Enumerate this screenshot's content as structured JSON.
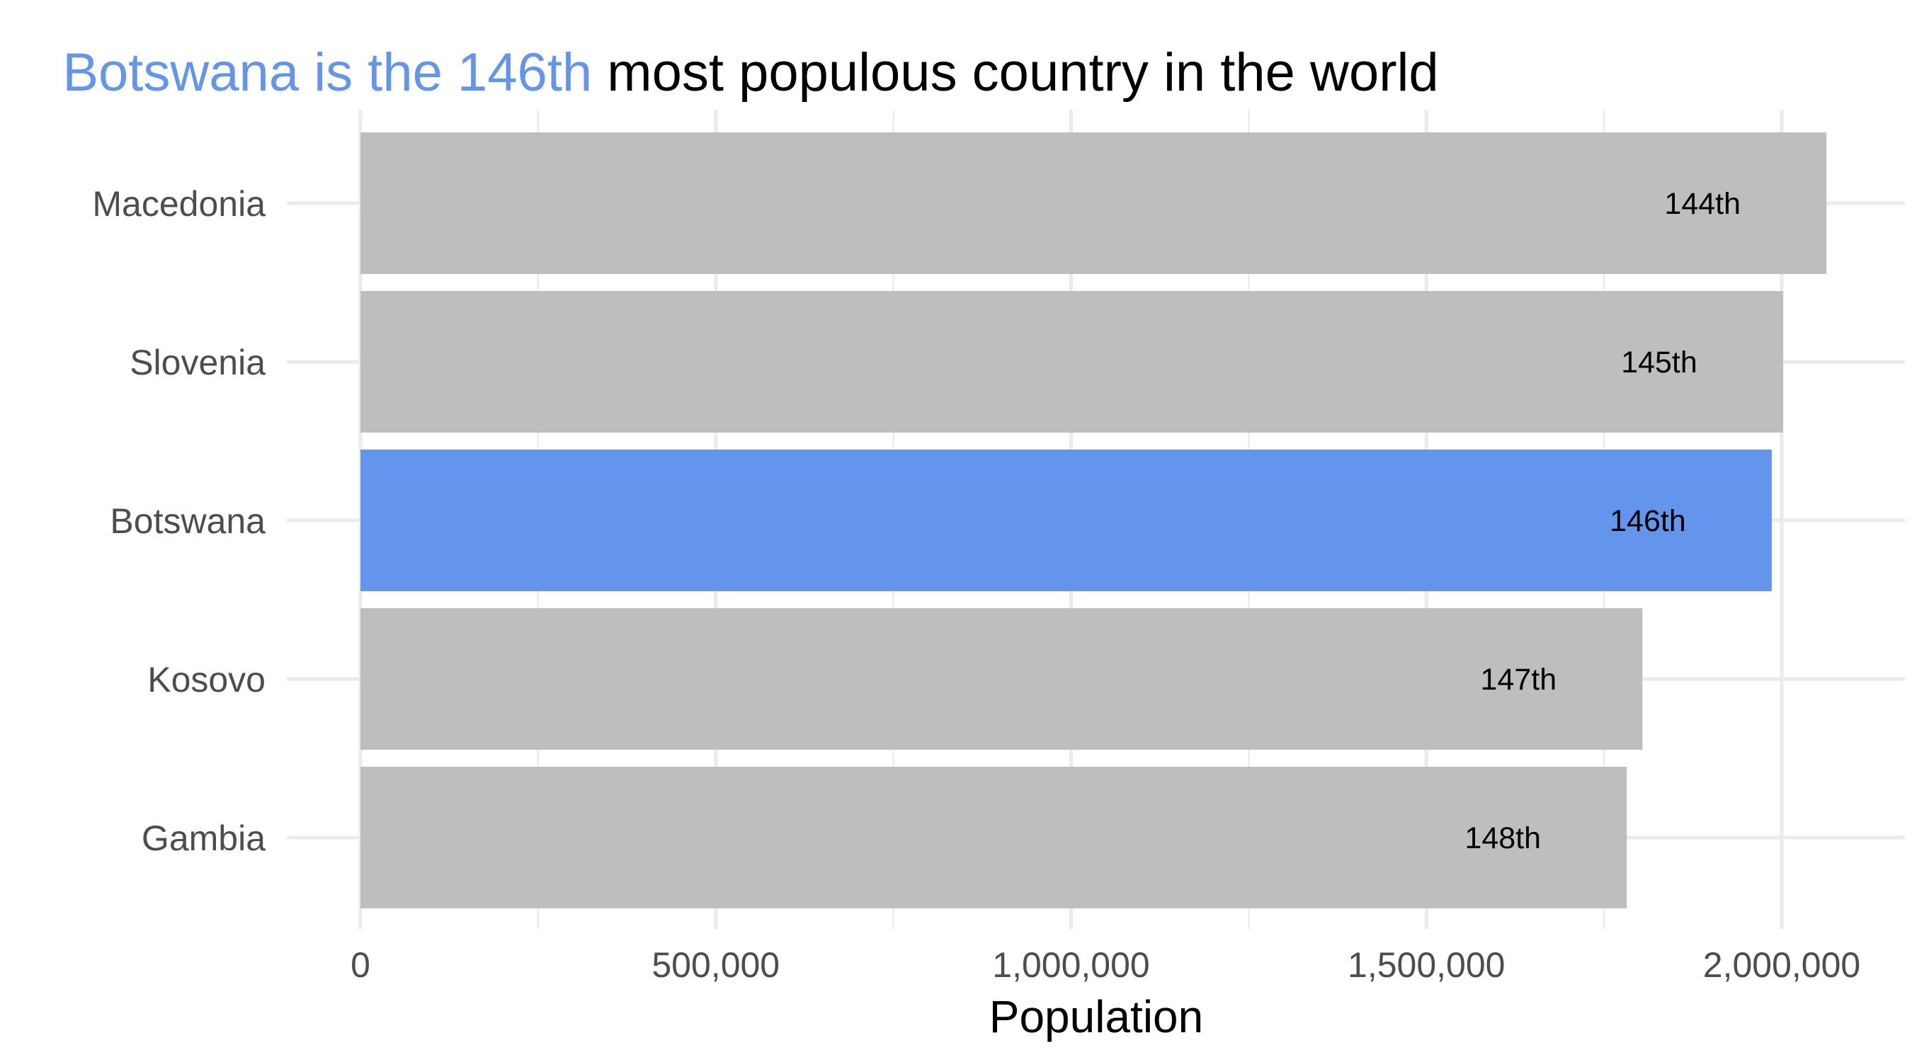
{
  "chart_data": {
    "type": "bar",
    "orientation": "horizontal",
    "title_highlight": "Botswana is the 146th",
    "title_rest": "most populous country in the world",
    "xlabel": "Population",
    "ylabel": "",
    "xlim": [
      0,
      2150000
    ],
    "xticks": [
      0,
      500000,
      1000000,
      1500000,
      2000000
    ],
    "xtick_labels": [
      "0",
      "500,000",
      "1,000,000",
      "1,500,000",
      "2,000,000"
    ],
    "categories": [
      "Macedonia",
      "Slovenia",
      "Botswana",
      "Kosovo",
      "Gambia"
    ],
    "values": [
      2063000,
      2002000,
      1986000,
      1804000,
      1782000
    ],
    "bar_labels": [
      "144th",
      "145th",
      "146th",
      "147th",
      "148th"
    ],
    "highlight": "Botswana",
    "colors": {
      "highlight": "#6495ED",
      "default": "#BEBEBE",
      "grid": "#EBEBEB",
      "title_highlight": "#6495ED",
      "title_rest": "#000000"
    },
    "grid": true,
    "legend": "none"
  }
}
